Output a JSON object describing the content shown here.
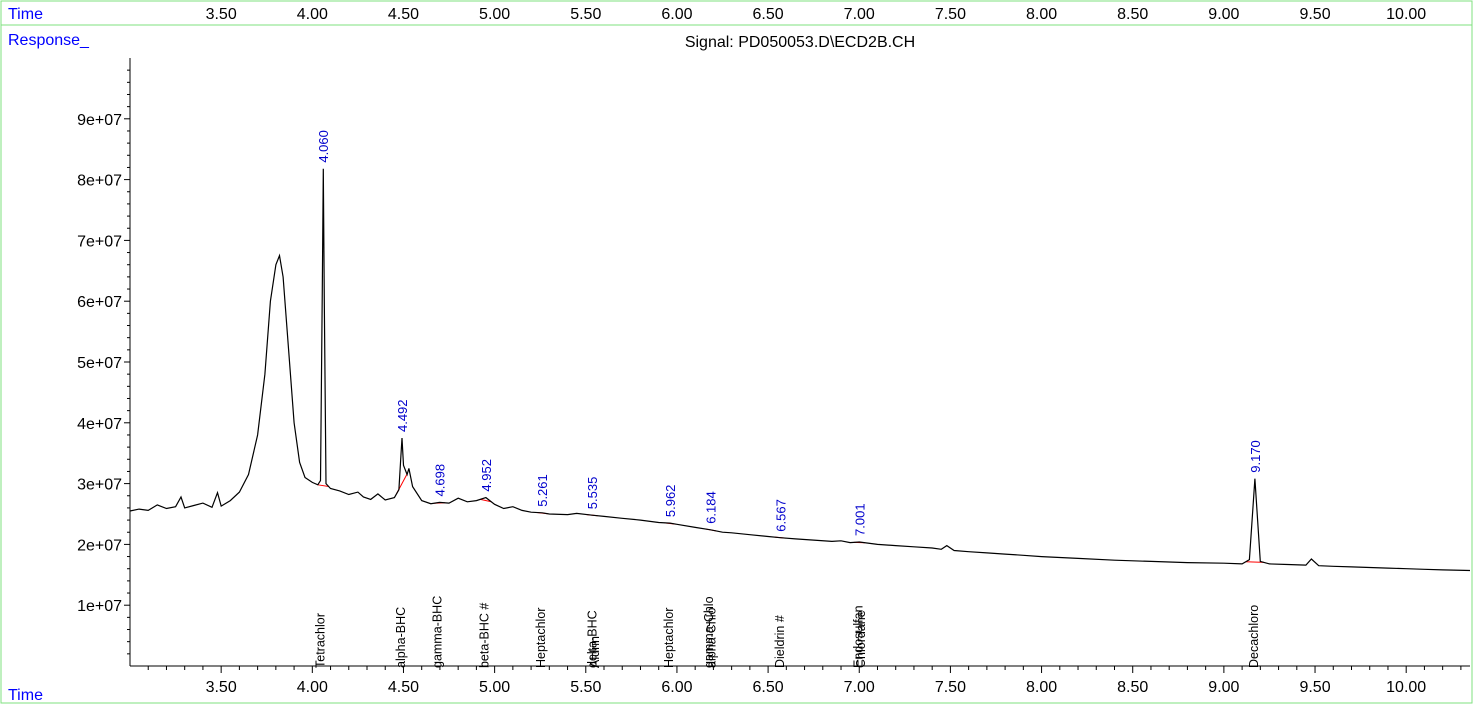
{
  "header": {
    "time_label": "Time",
    "response_label": "Response_",
    "signal_title": "Signal: PD050053.D\\ECD2B.CH"
  },
  "footer": {
    "time_label": "Time"
  },
  "colors": {
    "trace": "#000000",
    "baseline": "#ff0000",
    "labels_blue": "#0000ff",
    "frame_green": "#7fe07f"
  },
  "chart_data": {
    "type": "line",
    "title": "Signal: PD050053.D\\ECD2B.CH",
    "xlabel": "Time",
    "ylabel": "Response_",
    "xlim": [
      3.0,
      10.35
    ],
    "ylim": [
      0,
      100000000
    ],
    "x_ticks": [
      "3.50",
      "4.00",
      "4.50",
      "5.00",
      "5.50",
      "6.00",
      "6.50",
      "7.00",
      "7.50",
      "8.00",
      "8.50",
      "9.00",
      "9.50",
      "10.00"
    ],
    "x_tick_values": [
      3.5,
      4.0,
      4.5,
      5.0,
      5.5,
      6.0,
      6.5,
      7.0,
      7.5,
      8.0,
      8.5,
      9.0,
      9.5,
      10.0
    ],
    "y_ticks": [
      "1e+07",
      "2e+07",
      "3e+07",
      "4e+07",
      "5e+07",
      "6e+07",
      "7e+07",
      "8e+07",
      "9e+07"
    ],
    "y_tick_values": [
      10000000,
      20000000,
      30000000,
      40000000,
      50000000,
      60000000,
      70000000,
      80000000,
      90000000
    ],
    "trace": [
      [
        3.0,
        25500000
      ],
      [
        3.05,
        25800000
      ],
      [
        3.1,
        25600000
      ],
      [
        3.15,
        26500000
      ],
      [
        3.2,
        25900000
      ],
      [
        3.25,
        26200000
      ],
      [
        3.28,
        27800000
      ],
      [
        3.3,
        26000000
      ],
      [
        3.35,
        26400000
      ],
      [
        3.4,
        26800000
      ],
      [
        3.45,
        26100000
      ],
      [
        3.48,
        28500000
      ],
      [
        3.5,
        26300000
      ],
      [
        3.55,
        27200000
      ],
      [
        3.6,
        28600000
      ],
      [
        3.65,
        31500000
      ],
      [
        3.7,
        38000000
      ],
      [
        3.74,
        48000000
      ],
      [
        3.77,
        60000000
      ],
      [
        3.8,
        66000000
      ],
      [
        3.82,
        67500000
      ],
      [
        3.84,
        64000000
      ],
      [
        3.87,
        52000000
      ],
      [
        3.9,
        40000000
      ],
      [
        3.93,
        33500000
      ],
      [
        3.96,
        31000000
      ],
      [
        4.0,
        30200000
      ],
      [
        4.03,
        29800000
      ],
      [
        4.045,
        30500000
      ],
      [
        4.055,
        62000000
      ],
      [
        4.06,
        81800000
      ],
      [
        4.066,
        60000000
      ],
      [
        4.075,
        30000000
      ],
      [
        4.1,
        29200000
      ],
      [
        4.15,
        28800000
      ],
      [
        4.2,
        28200000
      ],
      [
        4.25,
        28600000
      ],
      [
        4.28,
        27800000
      ],
      [
        4.32,
        27400000
      ],
      [
        4.36,
        28300000
      ],
      [
        4.4,
        27300000
      ],
      [
        4.45,
        27700000
      ],
      [
        4.475,
        29000000
      ],
      [
        4.485,
        34000000
      ],
      [
        4.492,
        37500000
      ],
      [
        4.5,
        33000000
      ],
      [
        4.52,
        31500000
      ],
      [
        4.53,
        32500000
      ],
      [
        4.55,
        29500000
      ],
      [
        4.6,
        27200000
      ],
      [
        4.65,
        26700000
      ],
      [
        4.698,
        26900000
      ],
      [
        4.75,
        26800000
      ],
      [
        4.8,
        27600000
      ],
      [
        4.85,
        27000000
      ],
      [
        4.9,
        27200000
      ],
      [
        4.952,
        27700000
      ],
      [
        5.0,
        26600000
      ],
      [
        5.05,
        25900000
      ],
      [
        5.1,
        26200000
      ],
      [
        5.15,
        25600000
      ],
      [
        5.2,
        25300000
      ],
      [
        5.261,
        25200000
      ],
      [
        5.3,
        25000000
      ],
      [
        5.4,
        24900000
      ],
      [
        5.45,
        25100000
      ],
      [
        5.535,
        24800000
      ],
      [
        5.6,
        24600000
      ],
      [
        5.7,
        24300000
      ],
      [
        5.8,
        24000000
      ],
      [
        5.9,
        23600000
      ],
      [
        5.962,
        23500000
      ],
      [
        6.0,
        23300000
      ],
      [
        6.1,
        22800000
      ],
      [
        6.184,
        22400000
      ],
      [
        6.25,
        22000000
      ],
      [
        6.3,
        21900000
      ],
      [
        6.4,
        21600000
      ],
      [
        6.5,
        21300000
      ],
      [
        6.567,
        21100000
      ],
      [
        6.65,
        20900000
      ],
      [
        6.75,
        20700000
      ],
      [
        6.85,
        20500000
      ],
      [
        6.9,
        20600000
      ],
      [
        6.95,
        20300000
      ],
      [
        7.001,
        20400000
      ],
      [
        7.1,
        20000000
      ],
      [
        7.2,
        19800000
      ],
      [
        7.3,
        19600000
      ],
      [
        7.4,
        19400000
      ],
      [
        7.45,
        19200000
      ],
      [
        7.48,
        19800000
      ],
      [
        7.52,
        19000000
      ],
      [
        7.6,
        18800000
      ],
      [
        7.7,
        18600000
      ],
      [
        7.8,
        18400000
      ],
      [
        7.9,
        18200000
      ],
      [
        8.0,
        18000000
      ],
      [
        8.2,
        17700000
      ],
      [
        8.4,
        17400000
      ],
      [
        8.6,
        17200000
      ],
      [
        8.8,
        17000000
      ],
      [
        9.0,
        16900000
      ],
      [
        9.1,
        16800000
      ],
      [
        9.14,
        17500000
      ],
      [
        9.155,
        24000000
      ],
      [
        9.17,
        30800000
      ],
      [
        9.185,
        24000000
      ],
      [
        9.2,
        17200000
      ],
      [
        9.25,
        16800000
      ],
      [
        9.35,
        16700000
      ],
      [
        9.45,
        16600000
      ],
      [
        9.48,
        17600000
      ],
      [
        9.52,
        16500000
      ],
      [
        9.6,
        16400000
      ],
      [
        9.7,
        16300000
      ],
      [
        9.8,
        16200000
      ],
      [
        9.9,
        16100000
      ],
      [
        10.0,
        16000000
      ],
      [
        10.1,
        15900000
      ],
      [
        10.2,
        15800000
      ],
      [
        10.35,
        15700000
      ]
    ],
    "peaks": [
      {
        "rt": 4.06,
        "label": "4.060",
        "height": 81800000
      },
      {
        "rt": 4.492,
        "label": "4.492",
        "height": 37500000
      },
      {
        "rt": 4.698,
        "label": "4.698",
        "height": 26900000
      },
      {
        "rt": 4.952,
        "label": "4.952",
        "height": 27700000
      },
      {
        "rt": 5.261,
        "label": "5.261",
        "height": 25200000
      },
      {
        "rt": 5.535,
        "label": "5.535",
        "height": 24800000
      },
      {
        "rt": 5.962,
        "label": "5.962",
        "height": 23500000
      },
      {
        "rt": 6.184,
        "label": "6.184",
        "height": 22400000
      },
      {
        "rt": 6.567,
        "label": "6.567",
        "height": 21100000
      },
      {
        "rt": 7.001,
        "label": "7.001",
        "height": 20400000
      },
      {
        "rt": 9.17,
        "label": "9.170",
        "height": 30800000
      }
    ],
    "compound_labels": [
      {
        "rt": 4.04,
        "name": "Tetrachlor"
      },
      {
        "rt": 4.48,
        "name": "alpha-BHC"
      },
      {
        "rt": 4.68,
        "name": "gamma-BHC"
      },
      {
        "rt": 4.94,
        "name": "beta-BHC #"
      },
      {
        "rt": 5.25,
        "name": "Heptachlor"
      },
      {
        "rt": 5.53,
        "name": "delta-BHC"
      },
      {
        "rt": 5.545,
        "name": "Aldrin"
      },
      {
        "rt": 5.95,
        "name": "Heptachlor"
      },
      {
        "rt": 6.17,
        "name": "gamma-Chlo"
      },
      {
        "rt": 6.185,
        "name": "alpha-Chlo"
      },
      {
        "rt": 6.56,
        "name": "Dieldrin #"
      },
      {
        "rt": 6.99,
        "name": "Endosulfan"
      },
      {
        "rt": 7.005,
        "name": "Chlordane"
      },
      {
        "rt": 9.16,
        "name": "Decachloro"
      }
    ]
  }
}
